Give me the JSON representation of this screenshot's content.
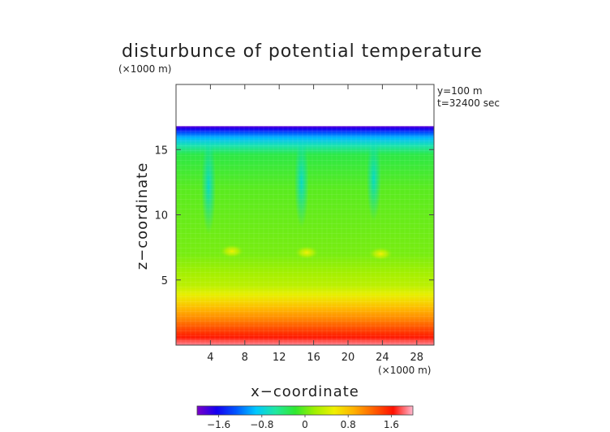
{
  "chart_data": {
    "type": "heatmap",
    "title": "disturbunce of potential temperature",
    "y_unit": "(×1000 m)",
    "x_unit": "(×1000 m)",
    "xlabel": "x−coordinate",
    "ylabel": "z−coordinate",
    "annotations": [
      "y=100 m",
      "t=32400 sec"
    ],
    "xlim": [
      0,
      30
    ],
    "ylim": [
      0,
      20
    ],
    "x_ticks": [
      4,
      8,
      12,
      16,
      20,
      24,
      28
    ],
    "x_tick_labels": [
      "4",
      "8",
      "12",
      "16",
      "20",
      "24",
      "28"
    ],
    "y_ticks": [
      5,
      10,
      15
    ],
    "y_tick_labels": [
      "5",
      "10",
      "15"
    ],
    "data_top": 16.8,
    "colorbar": {
      "range": [
        -2.0,
        2.0
      ],
      "ticks": [
        -1.6,
        -0.8,
        0,
        0.8,
        1.6
      ],
      "tick_labels": [
        "−1.6",
        "−0.8",
        "0",
        "0.8",
        "1.6"
      ]
    },
    "colormap": [
      "#7a00c8",
      "#1400f0",
      "#0058ff",
      "#00c8ff",
      "#20e8a0",
      "#30e830",
      "#a0f000",
      "#f0f000",
      "#ffb000",
      "#ff6000",
      "#ff1000",
      "#ffb8d0"
    ],
    "vertical_profile": [
      {
        "z": 0.0,
        "value": 1.9
      },
      {
        "z": 0.6,
        "value": 1.6
      },
      {
        "z": 1.3,
        "value": 1.35
      },
      {
        "z": 2.0,
        "value": 1.1
      },
      {
        "z": 2.7,
        "value": 0.9
      },
      {
        "z": 3.3,
        "value": 0.7
      },
      {
        "z": 3.9,
        "value": 0.5
      },
      {
        "z": 4.6,
        "value": 0.3
      },
      {
        "z": 5.5,
        "value": 0.2
      },
      {
        "z": 7.0,
        "value": 0.05
      },
      {
        "z": 12.0,
        "value": -0.05
      },
      {
        "z": 14.6,
        "value": -0.25
      },
      {
        "z": 15.3,
        "value": -0.6
      },
      {
        "z": 15.9,
        "value": -0.95
      },
      {
        "z": 16.3,
        "value": -1.3
      },
      {
        "z": 16.6,
        "value": -1.65
      },
      {
        "z": 16.8,
        "value": -1.9
      }
    ],
    "cold_plumes": [
      {
        "x": 3.8,
        "z_top": 16.0,
        "z_bottom": 8.5,
        "value": -0.35
      },
      {
        "x": 14.6,
        "z_top": 16.0,
        "z_bottom": 9.0,
        "value": -0.45
      },
      {
        "x": 23.0,
        "z_top": 16.0,
        "z_bottom": 9.5,
        "value": -0.4
      }
    ],
    "warm_cells": [
      {
        "x": 6.5,
        "z": 7.2,
        "value": 0.35
      },
      {
        "x": 15.2,
        "z": 7.1,
        "value": 0.5
      },
      {
        "x": 23.8,
        "z": 7.0,
        "value": 0.6
      }
    ]
  }
}
